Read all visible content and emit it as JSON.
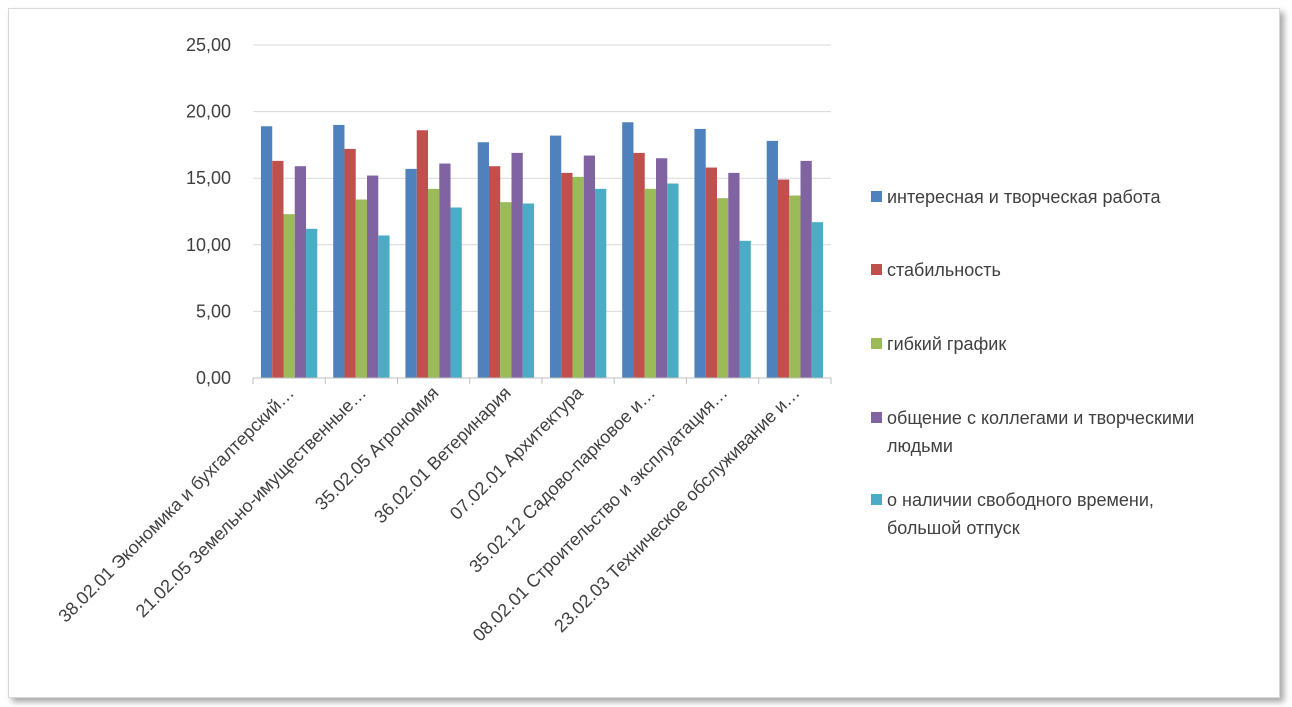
{
  "chart_data": {
    "type": "bar",
    "title": "",
    "xlabel": "",
    "ylabel": "",
    "ylim": [
      0,
      25
    ],
    "yticks": [
      "0,00",
      "5,00",
      "10,00",
      "15,00",
      "20,00",
      "25,00"
    ],
    "grid": true,
    "legend_position": "right",
    "categories": [
      "38.02.01 Экономика и бухгалтерский…",
      "21.02.05 Земельно-имущественные…",
      "35.02.05 Агрономия",
      "36.02.01 Ветеринария",
      "07.02.01 Архитектура",
      "35.02.12 Садово-парковое и…",
      "08.02.01 Строительство и эксплуатация…",
      "23.02.03 Техническое обслуживание и…"
    ],
    "series": [
      {
        "name": "интересная и творческая работа",
        "legend_lines": [
          "интересная и творческая работа"
        ],
        "color": "#4f81bd",
        "values": [
          18.9,
          19.0,
          15.7,
          17.7,
          18.2,
          19.2,
          18.7,
          17.8
        ]
      },
      {
        "name": "стабильность",
        "legend_lines": [
          "стабильность"
        ],
        "color": "#c0504d",
        "values": [
          16.3,
          17.2,
          18.6,
          15.9,
          15.4,
          16.9,
          15.8,
          14.9
        ]
      },
      {
        "name": "гибкий график",
        "legend_lines": [
          "гибкий график"
        ],
        "color": "#9bbb59",
        "values": [
          12.3,
          13.4,
          14.2,
          13.2,
          15.1,
          14.2,
          13.5,
          13.7
        ]
      },
      {
        "name": "общение с коллегами и творческими людьми",
        "legend_lines": [
          "общение с коллегами и творческими",
          "людьми"
        ],
        "color": "#8064a2",
        "values": [
          15.9,
          15.2,
          16.1,
          16.9,
          16.7,
          16.5,
          15.4,
          16.3
        ]
      },
      {
        "name": "о наличии свободного времени, большой отпуск",
        "legend_lines": [
          "о наличии свободного времени,",
          "большой отпуск"
        ],
        "color": "#4bacc6",
        "values": [
          11.2,
          10.7,
          12.8,
          13.1,
          14.2,
          14.6,
          10.3,
          11.7
        ]
      }
    ]
  }
}
